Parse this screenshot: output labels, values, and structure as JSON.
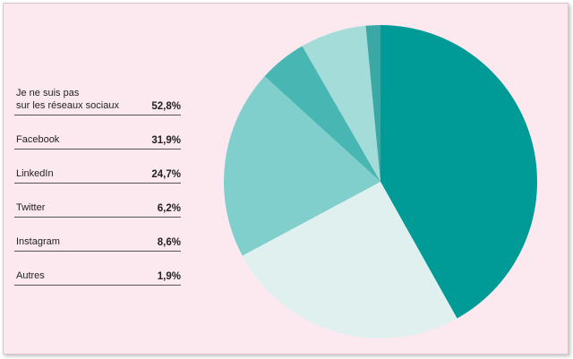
{
  "chart_data": {
    "type": "pie",
    "categories": [
      "Je ne suis pas\nsur les réseaux sociaux",
      "Facebook",
      "LinkedIn",
      "Twitter",
      "Instagram",
      "Autres"
    ],
    "values": [
      52.8,
      31.9,
      24.7,
      6.2,
      8.6,
      1.9
    ],
    "value_labels": [
      "52,8%",
      "31,9%",
      "24,7%",
      "6,2%",
      "8,6%",
      "1,9%"
    ],
    "colors": [
      "#009b96",
      "#dff0ef",
      "#80cfcc",
      "#48b6b2",
      "#a4dcd9",
      "#3aa8a4"
    ]
  }
}
